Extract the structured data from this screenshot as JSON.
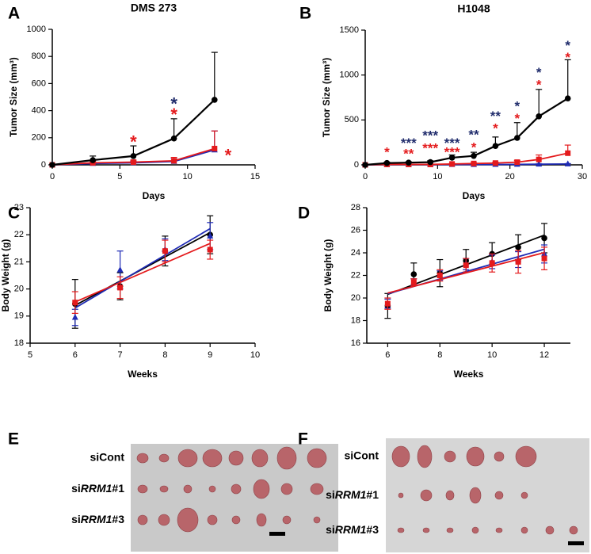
{
  "chart_data": [
    {
      "type": "line",
      "panel": "A",
      "title": "DMS 273",
      "x_label": "Days",
      "y_label": "Tumor Size (mm³)",
      "xlim": [
        0,
        15
      ],
      "xticks": [
        0,
        5,
        10,
        15
      ],
      "ylim": [
        0,
        1000
      ],
      "yticks": [
        0,
        200,
        400,
        600,
        800,
        1000
      ],
      "error_bars": "upper",
      "fit": "connect",
      "x": [
        0,
        3,
        6,
        9,
        12
      ],
      "series": [
        {
          "color": "#1f2bb5",
          "marker": "triangle",
          "values": [
            0,
            10,
            15,
            25,
            110
          ],
          "errors": [
            0,
            8,
            12,
            20,
            140
          ]
        },
        {
          "color": "#e41a1c",
          "marker": "square",
          "values": [
            0,
            15,
            20,
            30,
            120
          ],
          "errors": [
            0,
            10,
            15,
            25,
            130
          ]
        },
        {
          "color": "#000000",
          "marker": "circle",
          "values": [
            0,
            35,
            65,
            195,
            480
          ],
          "errors": [
            5,
            30,
            75,
            145,
            350
          ]
        }
      ],
      "annotations": [
        {
          "text": "*",
          "x": 6,
          "y": 190,
          "color": "#e41a1c"
        },
        {
          "text": "*",
          "x": 9,
          "y": 470,
          "color": "#1f2b6b"
        },
        {
          "text": "*",
          "x": 9,
          "y": 390,
          "color": "#e41a1c"
        },
        {
          "text": "*",
          "x": 13,
          "y": 90,
          "color": "#e41a1c"
        }
      ]
    },
    {
      "type": "line",
      "panel": "B",
      "title": "H1048",
      "x_label": "Days",
      "y_label": "Tumor Size (mm³)",
      "xlim": [
        0,
        30
      ],
      "xticks": [
        0,
        10,
        20,
        30
      ],
      "ylim": [
        0,
        1500
      ],
      "yticks": [
        0,
        500,
        1000,
        1500
      ],
      "error_bars": "upper",
      "fit": "connect",
      "x": [
        0,
        3,
        6,
        9,
        12,
        15,
        18,
        21,
        24,
        28
      ],
      "series": [
        {
          "color": "#1f2bb5",
          "marker": "triangle",
          "values": [
            0,
            2,
            2,
            2,
            3,
            3,
            4,
            5,
            8,
            10
          ],
          "errors": [
            0,
            1,
            1,
            1,
            1,
            1,
            2,
            2,
            3,
            4
          ]
        },
        {
          "color": "#e41a1c",
          "marker": "square",
          "values": [
            0,
            5,
            5,
            5,
            10,
            15,
            20,
            30,
            60,
            130
          ],
          "errors": [
            0,
            2,
            2,
            3,
            5,
            8,
            10,
            20,
            50,
            90
          ]
        },
        {
          "color": "#000000",
          "marker": "circle",
          "values": [
            0,
            20,
            25,
            30,
            80,
            100,
            210,
            300,
            540,
            740
          ],
          "errors": [
            0,
            10,
            10,
            15,
            30,
            40,
            100,
            170,
            300,
            430
          ]
        }
      ],
      "annotations": [
        {
          "text": "*",
          "x": 3,
          "y": 176,
          "color": "#e41a1c"
        },
        {
          "text": "**",
          "x": 6,
          "y": 160,
          "color": "#e41a1c"
        },
        {
          "text": "***",
          "x": 9,
          "y": 220,
          "color": "#e41a1c"
        },
        {
          "text": "***",
          "x": 12,
          "y": 176,
          "color": "#e41a1c"
        },
        {
          "text": "*",
          "x": 15,
          "y": 230,
          "color": "#e41a1c"
        },
        {
          "text": "*",
          "x": 18,
          "y": 440,
          "color": "#e41a1c"
        },
        {
          "text": "*",
          "x": 21,
          "y": 550,
          "color": "#e41a1c"
        },
        {
          "text": "*",
          "x": 24,
          "y": 925,
          "color": "#e41a1c"
        },
        {
          "text": "*",
          "x": 28,
          "y": 1230,
          "color": "#e41a1c"
        },
        {
          "text": "***",
          "x": 6,
          "y": 280,
          "color": "#1f2b6b"
        },
        {
          "text": "***",
          "x": 9,
          "y": 360,
          "color": "#1f2b6b"
        },
        {
          "text": "***",
          "x": 12,
          "y": 280,
          "color": "#1f2b6b"
        },
        {
          "text": "**",
          "x": 15,
          "y": 370,
          "color": "#1f2b6b"
        },
        {
          "text": "**",
          "x": 18,
          "y": 580,
          "color": "#1f2b6b"
        },
        {
          "text": "*",
          "x": 21,
          "y": 690,
          "color": "#1f2b6b"
        },
        {
          "text": "*",
          "x": 24,
          "y": 1065,
          "color": "#1f2b6b"
        },
        {
          "text": "*",
          "x": 28,
          "y": 1365,
          "color": "#1f2b6b"
        }
      ]
    },
    {
      "type": "line",
      "panel": "C",
      "x_label": "Weeks",
      "y_label": "Body Weight (g)",
      "xlim": [
        5,
        10
      ],
      "xticks": [
        5,
        6,
        7,
        8,
        9,
        10
      ],
      "ylim": [
        18,
        23
      ],
      "yticks": [
        18,
        19,
        20,
        21,
        22,
        23
      ],
      "error_bars": "both",
      "fit": "linear",
      "x": [
        6,
        7,
        8,
        9
      ],
      "series": [
        {
          "color": "#000000",
          "marker": "circle",
          "values": [
            19.45,
            20.1,
            21.4,
            22.0
          ],
          "errors": [
            0.9,
            0.5,
            0.55,
            0.7
          ]
        },
        {
          "color": "#1f2bb5",
          "marker": "triangle",
          "values": [
            18.95,
            20.7,
            21.45,
            21.95
          ],
          "errors": [
            0.3,
            0.7,
            0.4,
            0.5
          ]
        },
        {
          "color": "#e41a1c",
          "marker": "square",
          "values": [
            19.5,
            20.05,
            21.4,
            21.45
          ],
          "errors": [
            0.4,
            0.4,
            0.4,
            0.35
          ]
        }
      ]
    },
    {
      "type": "line",
      "panel": "D",
      "x_label": "Weeks",
      "y_label": "Body Weight (g)",
      "xlim": [
        5.2,
        13
      ],
      "xticks": [
        6,
        8,
        10,
        12
      ],
      "ylim": [
        16,
        28
      ],
      "yticks": [
        16,
        18,
        20,
        22,
        24,
        26,
        28
      ],
      "error_bars": "both",
      "fit": "linear",
      "x": [
        6,
        7,
        8,
        9,
        10,
        11,
        12
      ],
      "series": [
        {
          "color": "#000000",
          "marker": "circle",
          "values": [
            19.3,
            22.1,
            22.2,
            23.3,
            23.9,
            24.5,
            25.3
          ],
          "errors": [
            1.1,
            1.0,
            1.2,
            1.0,
            1.0,
            1.1,
            1.3
          ]
        },
        {
          "color": "#1f2bb5",
          "marker": "triangle",
          "values": [
            19.5,
            21.4,
            22.0,
            23.0,
            23.2,
            23.4,
            23.9
          ],
          "errors": [
            0.4,
            0.3,
            0.4,
            0.5,
            0.6,
            0.7,
            0.8
          ]
        },
        {
          "color": "#e41a1c",
          "marker": "square",
          "values": [
            19.5,
            21.4,
            22.0,
            22.9,
            23.1,
            23.2,
            23.5
          ],
          "errors": [
            0.5,
            0.3,
            0.5,
            0.6,
            0.8,
            1.0,
            1.0
          ]
        }
      ]
    }
  ],
  "photos": [
    {
      "panel": "E",
      "rows": [
        {
          "label": "siCont"
        },
        {
          "prefix": "si",
          "gene": "RRM1",
          "suffix": "#1"
        },
        {
          "prefix": "si",
          "gene": "RRM1",
          "suffix": "#3"
        }
      ]
    },
    {
      "panel": "F",
      "rows": [
        {
          "label": "siCont"
        },
        {
          "prefix": "si",
          "gene": "RRM1",
          "suffix": "#1"
        },
        {
          "prefix": "si",
          "gene": "RRM1",
          "suffix": "#3"
        }
      ]
    }
  ]
}
